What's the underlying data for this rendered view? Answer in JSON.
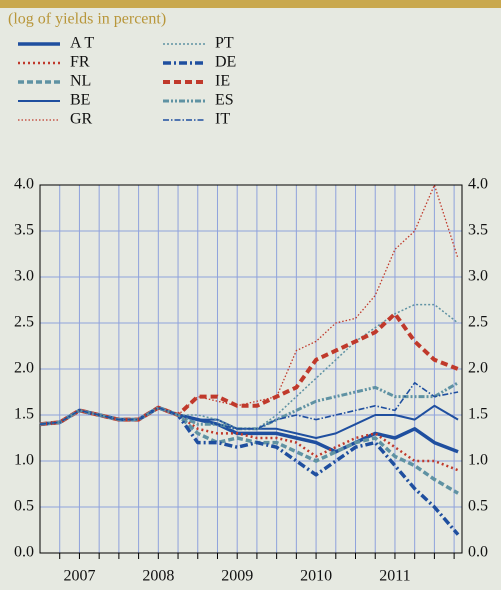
{
  "chart_data": {
    "type": "line",
    "subtitle": "(log of yields in percent)",
    "x": [
      2007,
      2007.25,
      2007.5,
      2007.75,
      2008,
      2008.25,
      2008.5,
      2008.75,
      2009,
      2009.25,
      2009.5,
      2009.75,
      2010,
      2010.25,
      2010.5,
      2010.75,
      2011,
      2011.25,
      2011.5,
      2011.75,
      2012,
      2012.3
    ],
    "xlim": [
      2007,
      2012.35
    ],
    "xticks": [
      {
        "value": 2007.5,
        "label": "2007"
      },
      {
        "value": 2008.5,
        "label": "2008"
      },
      {
        "value": 2009.5,
        "label": "2009"
      },
      {
        "value": 2010.5,
        "label": "2010"
      },
      {
        "value": 2011.5,
        "label": "2011"
      }
    ],
    "xgrid": [
      2007.25,
      2007.5,
      2007.75,
      2008,
      2008.25,
      2008.5,
      2008.75,
      2009,
      2009.25,
      2009.5,
      2009.75,
      2010,
      2010.25,
      2010.5,
      2010.75,
      2011,
      2011.25,
      2011.5,
      2011.75,
      2012,
      2012.25
    ],
    "ylim": [
      0,
      4
    ],
    "yticks": [
      {
        "value": 0,
        "label": "0.0"
      },
      {
        "value": 0.5,
        "label": "0.5"
      },
      {
        "value": 1,
        "label": "1.0"
      },
      {
        "value": 1.5,
        "label": "1.5"
      },
      {
        "value": 2,
        "label": "2.0"
      },
      {
        "value": 2.5,
        "label": "2.5"
      },
      {
        "value": 3,
        "label": "3.0"
      },
      {
        "value": 3.5,
        "label": "3.5"
      },
      {
        "value": 4,
        "label": "4.0"
      }
    ],
    "grid": true,
    "series": [
      {
        "name": "A T",
        "color": "#1f4f9f",
        "width": 3.5,
        "dash": "none",
        "values": [
          1.4,
          1.42,
          1.55,
          1.5,
          1.45,
          1.45,
          1.58,
          1.5,
          1.45,
          1.4,
          1.3,
          1.3,
          1.3,
          1.25,
          1.2,
          1.1,
          1.2,
          1.3,
          1.25,
          1.35,
          1.2,
          1.1
        ]
      },
      {
        "name": "FR",
        "color": "#c0392b",
        "width": 2.5,
        "dash": "2,3",
        "values": [
          1.4,
          1.42,
          1.55,
          1.5,
          1.45,
          1.45,
          1.58,
          1.5,
          1.35,
          1.3,
          1.3,
          1.25,
          1.25,
          1.2,
          1.05,
          1.15,
          1.25,
          1.3,
          1.15,
          1.0,
          1.0,
          0.9
        ]
      },
      {
        "name": "NL",
        "color": "#5f92a3",
        "width": 3.5,
        "dash": "6,3",
        "values": [
          1.4,
          1.42,
          1.55,
          1.5,
          1.45,
          1.45,
          1.58,
          1.5,
          1.3,
          1.2,
          1.25,
          1.2,
          1.2,
          1.1,
          1.0,
          1.1,
          1.2,
          1.25,
          1.05,
          0.95,
          0.8,
          0.65
        ]
      },
      {
        "name": "BE",
        "color": "#1f4f9f",
        "width": 2,
        "dash": "none",
        "values": [
          1.4,
          1.42,
          1.55,
          1.5,
          1.45,
          1.45,
          1.58,
          1.5,
          1.45,
          1.45,
          1.35,
          1.35,
          1.35,
          1.3,
          1.25,
          1.3,
          1.4,
          1.5,
          1.5,
          1.45,
          1.6,
          1.45
        ]
      },
      {
        "name": "GR",
        "color": "#c0392b",
        "width": 1.3,
        "dash": "1.5,2",
        "values": [
          1.4,
          1.42,
          1.55,
          1.5,
          1.45,
          1.45,
          1.58,
          1.5,
          1.7,
          1.65,
          1.6,
          1.65,
          1.7,
          2.2,
          2.3,
          2.5,
          2.55,
          2.8,
          3.3,
          3.5,
          4.0,
          3.2
        ]
      },
      {
        "name": "PT",
        "color": "#5f92a3",
        "width": 1.5,
        "dash": "2,2",
        "values": [
          1.4,
          1.42,
          1.55,
          1.5,
          1.45,
          1.45,
          1.58,
          1.5,
          1.5,
          1.45,
          1.35,
          1.35,
          1.5,
          1.7,
          1.9,
          2.1,
          2.3,
          2.45,
          2.6,
          2.7,
          2.7,
          2.5
        ]
      },
      {
        "name": "DE",
        "color": "#1f4f9f",
        "width": 3.5,
        "dash": "8,3,2,3",
        "values": [
          1.4,
          1.42,
          1.55,
          1.5,
          1.45,
          1.45,
          1.58,
          1.5,
          1.2,
          1.2,
          1.15,
          1.2,
          1.15,
          1.0,
          0.85,
          1.0,
          1.15,
          1.2,
          0.95,
          0.7,
          0.5,
          0.2
        ]
      },
      {
        "name": "IE",
        "color": "#c0392b",
        "width": 4,
        "dash": "7,4",
        "values": [
          1.4,
          1.42,
          1.55,
          1.5,
          1.45,
          1.45,
          1.58,
          1.5,
          1.7,
          1.7,
          1.6,
          1.6,
          1.7,
          1.8,
          2.1,
          2.2,
          2.3,
          2.4,
          2.6,
          2.3,
          2.1,
          2.0
        ]
      },
      {
        "name": "ES",
        "color": "#5f92a3",
        "width": 3,
        "dash": "6,2,2,2,2,2",
        "values": [
          1.4,
          1.42,
          1.55,
          1.5,
          1.45,
          1.45,
          1.58,
          1.5,
          1.4,
          1.4,
          1.35,
          1.35,
          1.45,
          1.55,
          1.65,
          1.7,
          1.75,
          1.8,
          1.7,
          1.7,
          1.7,
          1.85
        ]
      },
      {
        "name": "IT",
        "color": "#1f4f9f",
        "width": 1.6,
        "dash": "6,2,1.5,2",
        "values": [
          1.4,
          1.42,
          1.55,
          1.5,
          1.45,
          1.45,
          1.58,
          1.5,
          1.45,
          1.4,
          1.35,
          1.35,
          1.45,
          1.5,
          1.45,
          1.5,
          1.55,
          1.6,
          1.55,
          1.85,
          1.7,
          1.75
        ]
      }
    ]
  }
}
